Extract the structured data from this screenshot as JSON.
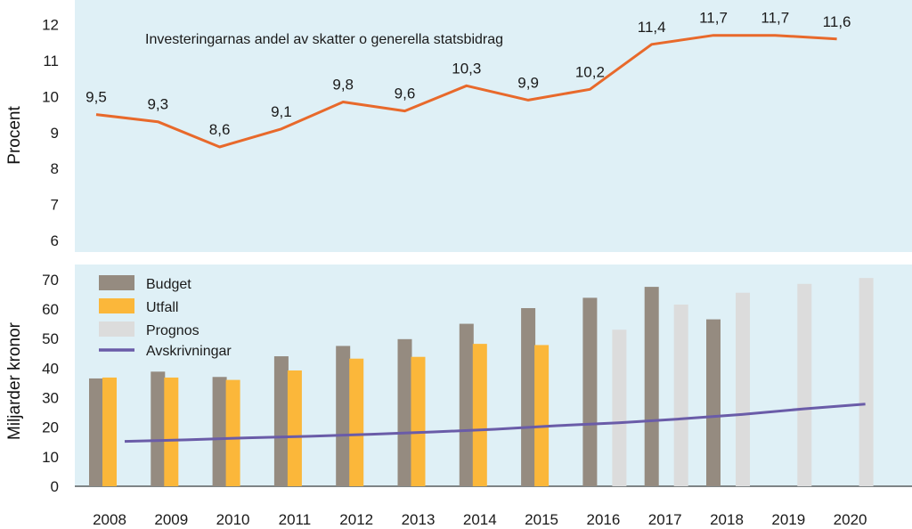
{
  "chart_data": [
    {
      "type": "line",
      "title": "Investeringarnas andel av skatter o generella statsbidrag",
      "ylabel": "Procent",
      "ylim": [
        5.5,
        12.5
      ],
      "yticks": [
        6,
        7,
        8,
        9,
        10,
        11,
        12
      ],
      "x": [
        "2008",
        "2009",
        "2010",
        "2011",
        "2012",
        "2013",
        "2014",
        "2015",
        "2016",
        "2017",
        "2018",
        "2019",
        "2020"
      ],
      "series": [
        {
          "name": "Investeringarnas andel",
          "color": "#e8692b",
          "values": [
            9.5,
            9.3,
            8.6,
            9.1,
            9.85,
            9.6,
            10.3,
            9.9,
            10.2,
            11.45,
            11.7,
            11.7,
            11.6
          ],
          "labels": [
            "9,5",
            "9,3",
            "8,6",
            "9,1",
            "9,8",
            "9,6",
            "10,3",
            "9,9",
            "10,2",
            "11,4",
            "11,7",
            "11,7",
            "11,6"
          ]
        }
      ]
    },
    {
      "type": "bar",
      "ylabel": "Miljarder kronor",
      "ylim": [
        0,
        73
      ],
      "yticks": [
        0,
        10,
        20,
        30,
        40,
        50,
        60,
        70
      ],
      "categories": [
        "2008",
        "2009",
        "2010",
        "2011",
        "2012",
        "2013",
        "2014",
        "2015",
        "2016",
        "2017",
        "2018",
        "2019",
        "2020"
      ],
      "series": [
        {
          "name": "Budget",
          "color": "#958b80",
          "values": [
            36.5,
            38.8,
            37,
            44,
            47.5,
            49.8,
            55,
            60.3,
            63.8,
            67.5,
            56.5,
            null,
            null
          ]
        },
        {
          "name": "Utfall",
          "color": "#fbb73a",
          "values": [
            36.8,
            36.8,
            36,
            39.2,
            43.2,
            43.8,
            48.2,
            47.8,
            null,
            null,
            null,
            null,
            null
          ]
        },
        {
          "name": "Prognos",
          "color": "#dcdcdc",
          "values": [
            null,
            null,
            null,
            null,
            null,
            null,
            null,
            null,
            53,
            61.5,
            65.5,
            68.5,
            70.5
          ]
        },
        {
          "name": "Avskrivningar",
          "type": "line",
          "color": "#6a5ca8",
          "values": [
            15.2,
            15.7,
            16.4,
            16.9,
            17.6,
            18.4,
            19.3,
            20.5,
            21.5,
            22.8,
            24.3,
            26.2,
            27.8
          ]
        }
      ],
      "legend": [
        "Budget",
        "Utfall",
        "Prognos",
        "Avskrivningar"
      ]
    }
  ]
}
